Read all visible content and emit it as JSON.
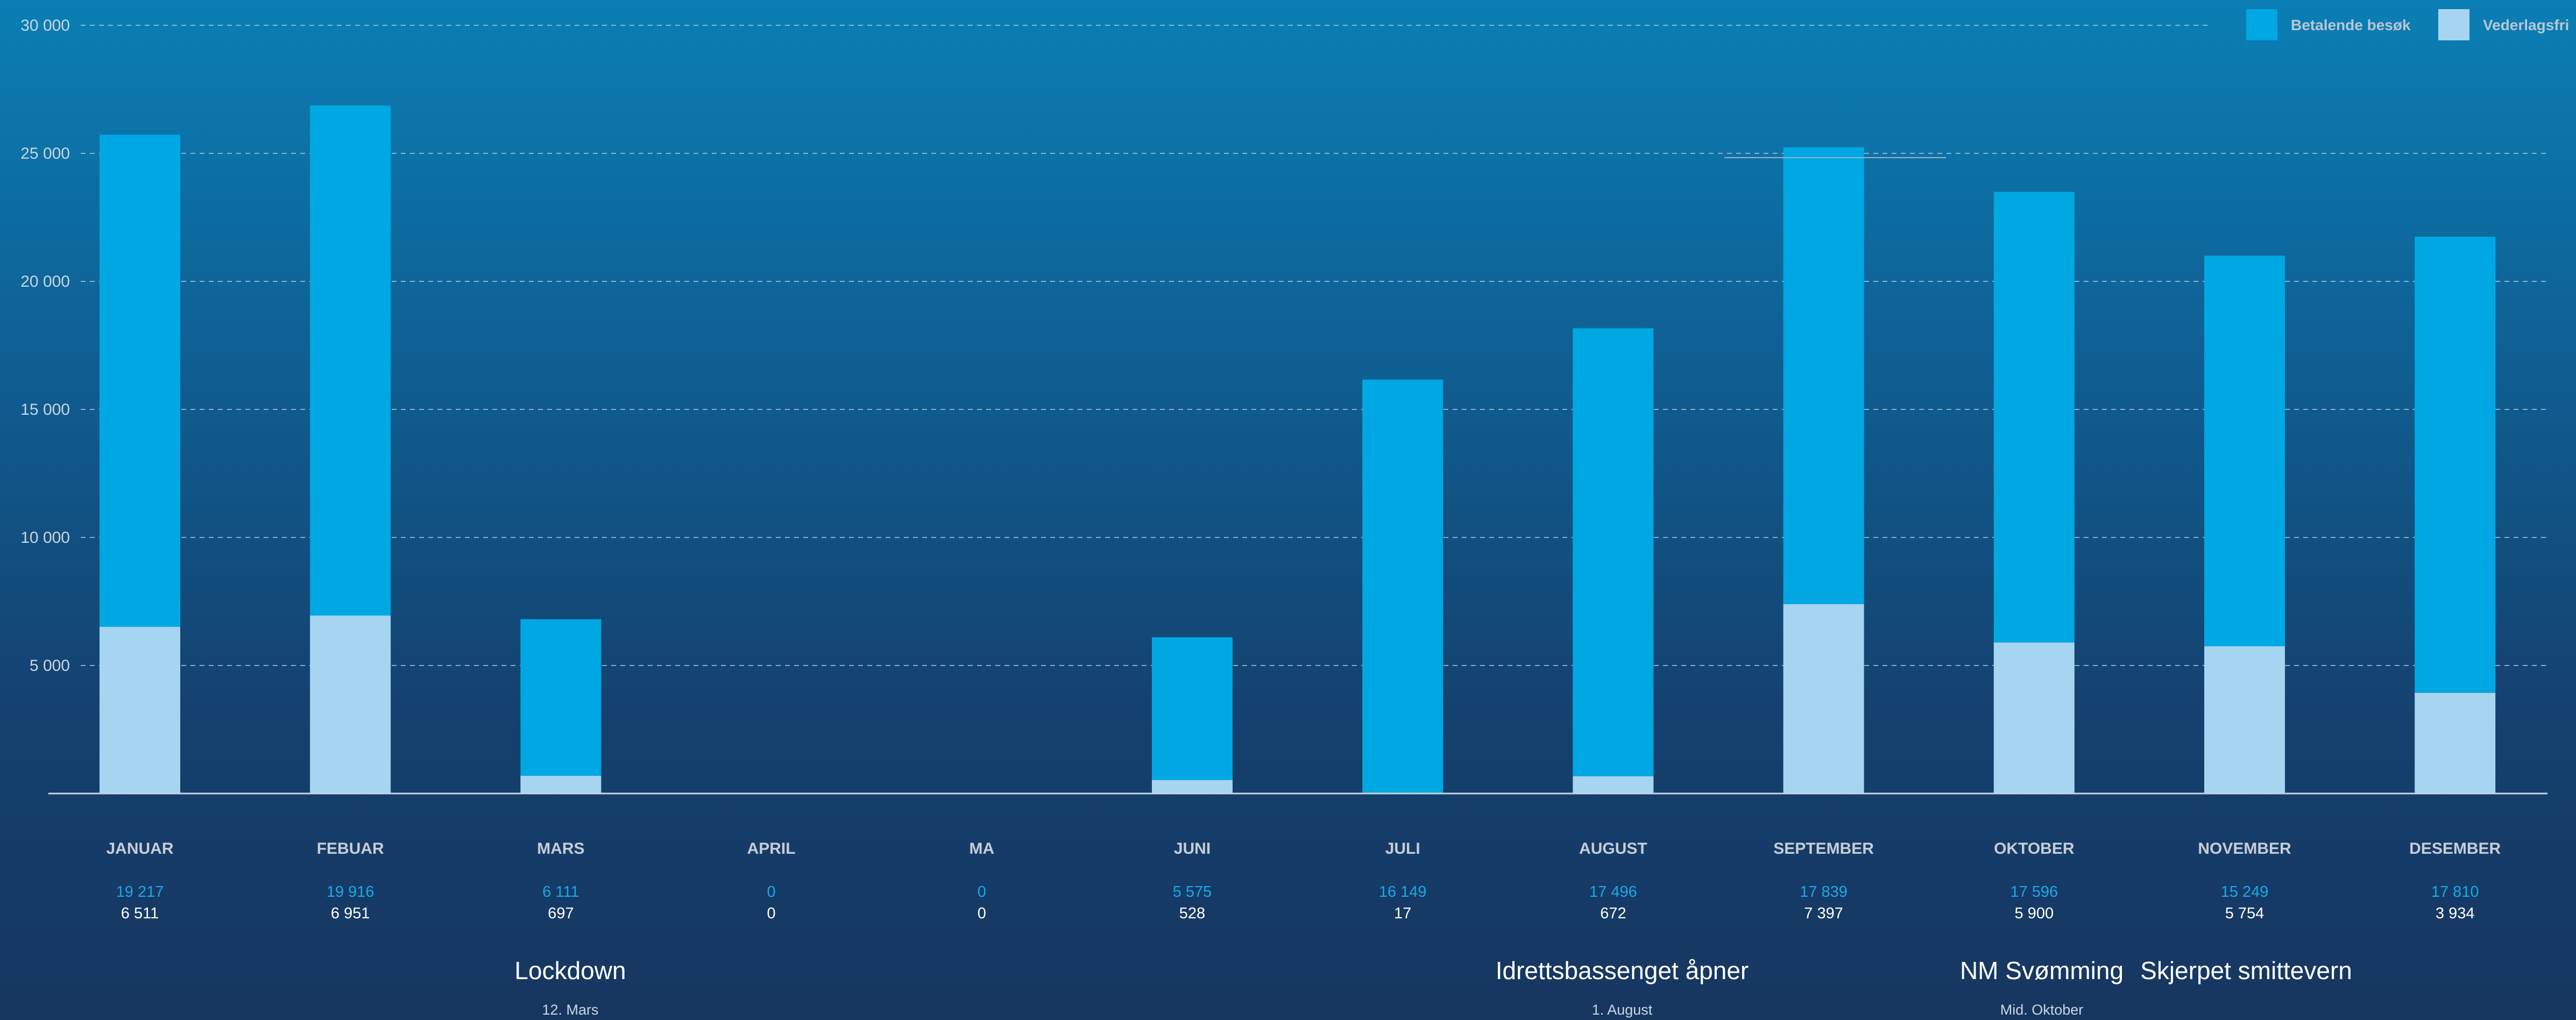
{
  "chart_data": {
    "type": "bar",
    "stacked": true,
    "categories": [
      "JANUAR",
      "FEBUAR",
      "MARS",
      "APRIL",
      "MA",
      "JUNI",
      "JULI",
      "AUGUST",
      "SEPTEMBER",
      "OKTOBER",
      "NOVEMBER",
      "DESEMBER"
    ],
    "series": [
      {
        "name": "Vederlagsfri",
        "color": "#a6d5f2",
        "values": [
          6511,
          6951,
          697,
          0,
          0,
          528,
          17,
          672,
          7397,
          5900,
          5754,
          3934
        ],
        "labels": [
          "6 511",
          "6 951",
          "697",
          "0",
          "0",
          "528",
          "17",
          "672",
          "7 397",
          "5 900",
          "5 754",
          "3 934"
        ]
      },
      {
        "name": "Betalende besøk",
        "color": "#00a8e3",
        "values": [
          19217,
          19916,
          6111,
          0,
          0,
          5575,
          16149,
          17496,
          17839,
          17596,
          15249,
          17810
        ],
        "labels": [
          "19 217",
          "19 916",
          "6 111",
          "0",
          "0",
          "5 575",
          "16 149",
          "17 496",
          "17 839",
          "17 596",
          "15 249",
          "17 810"
        ]
      }
    ],
    "ylim": [
      0,
      30000
    ],
    "yticks": [
      5000,
      10000,
      15000,
      20000,
      25000,
      30000
    ],
    "ytick_labels": [
      "5 000",
      "10 000",
      "15 000",
      "20 000",
      "25 000",
      "30 000"
    ],
    "grid": true,
    "legend": "top-right",
    "legend_order": [
      "Betalende besøk",
      "Vederlagsfri"
    ],
    "annotations": [
      {
        "title": "Lockdown",
        "subtitle": "12. Mars",
        "month_index": 2
      },
      {
        "title": "Idrettsbassenget åpner",
        "subtitle": "1. August",
        "month_index": 7
      },
      {
        "title": "NM Svømming",
        "subtitle": "Mid. Oktober",
        "month_index": 9
      },
      {
        "title": "Skjerpet smittevern",
        "subtitle": "",
        "month_index": 10
      }
    ]
  }
}
